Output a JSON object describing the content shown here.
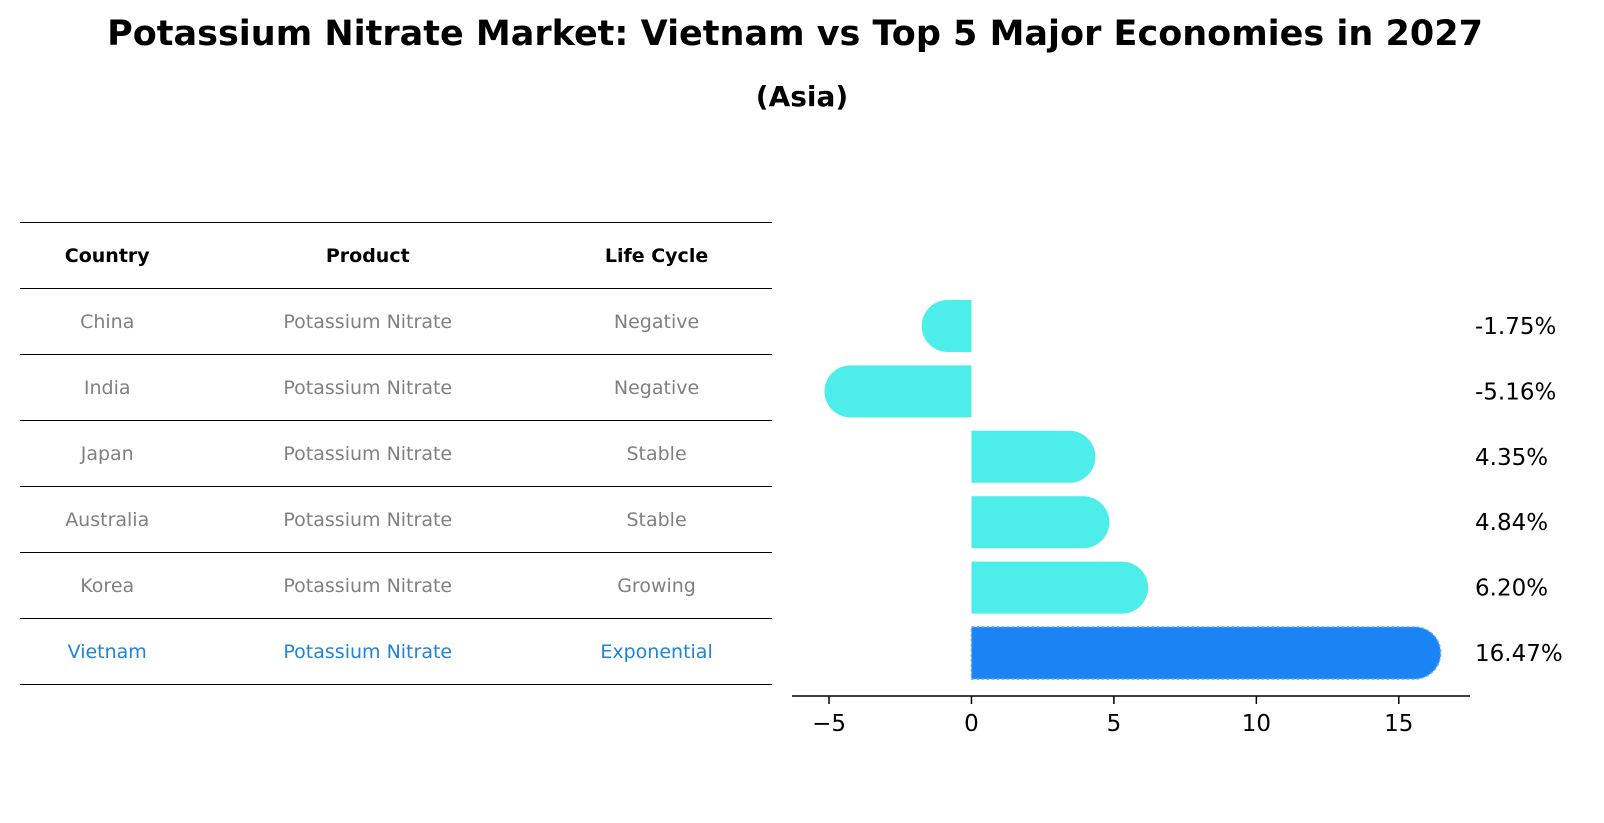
{
  "title": "Potassium Nitrate Market: Vietnam vs Top 5 Major Economies in 2027",
  "subtitle": "(Asia)",
  "table": {
    "headers": [
      "Country",
      "Product",
      "Life Cycle"
    ],
    "rows": [
      [
        "China",
        "Potassium Nitrate",
        "Negative"
      ],
      [
        "India",
        "Potassium Nitrate",
        "Negative"
      ],
      [
        "Japan",
        "Potassium Nitrate",
        "Stable"
      ],
      [
        "Australia",
        "Potassium Nitrate",
        "Stable"
      ],
      [
        "Korea",
        "Potassium Nitrate",
        "Growing"
      ],
      [
        "Vietnam",
        "Potassium Nitrate",
        "Exponential"
      ]
    ],
    "highlight_row": 5
  },
  "colors": {
    "bar": "#4deeea",
    "highlight_bar": "#1a84f5",
    "highlight_text": "#1f83d8",
    "muted_text": "#808080"
  },
  "chart_data": {
    "type": "bar",
    "orientation": "horizontal",
    "categories": [
      "China",
      "India",
      "Japan",
      "Australia",
      "Korea",
      "Vietnam"
    ],
    "values": [
      -1.75,
      -5.16,
      4.35,
      4.84,
      6.2,
      16.47
    ],
    "value_labels": [
      "-1.75%",
      "-5.16%",
      "4.35%",
      "4.84%",
      "6.20%",
      "16.47%"
    ],
    "xlim": [
      -6.3,
      17.5
    ],
    "xticks": [
      -5,
      0,
      5,
      10,
      15
    ],
    "xtick_labels": [
      "−5",
      "0",
      "5",
      "10",
      "15"
    ],
    "highlight_index": 5
  }
}
